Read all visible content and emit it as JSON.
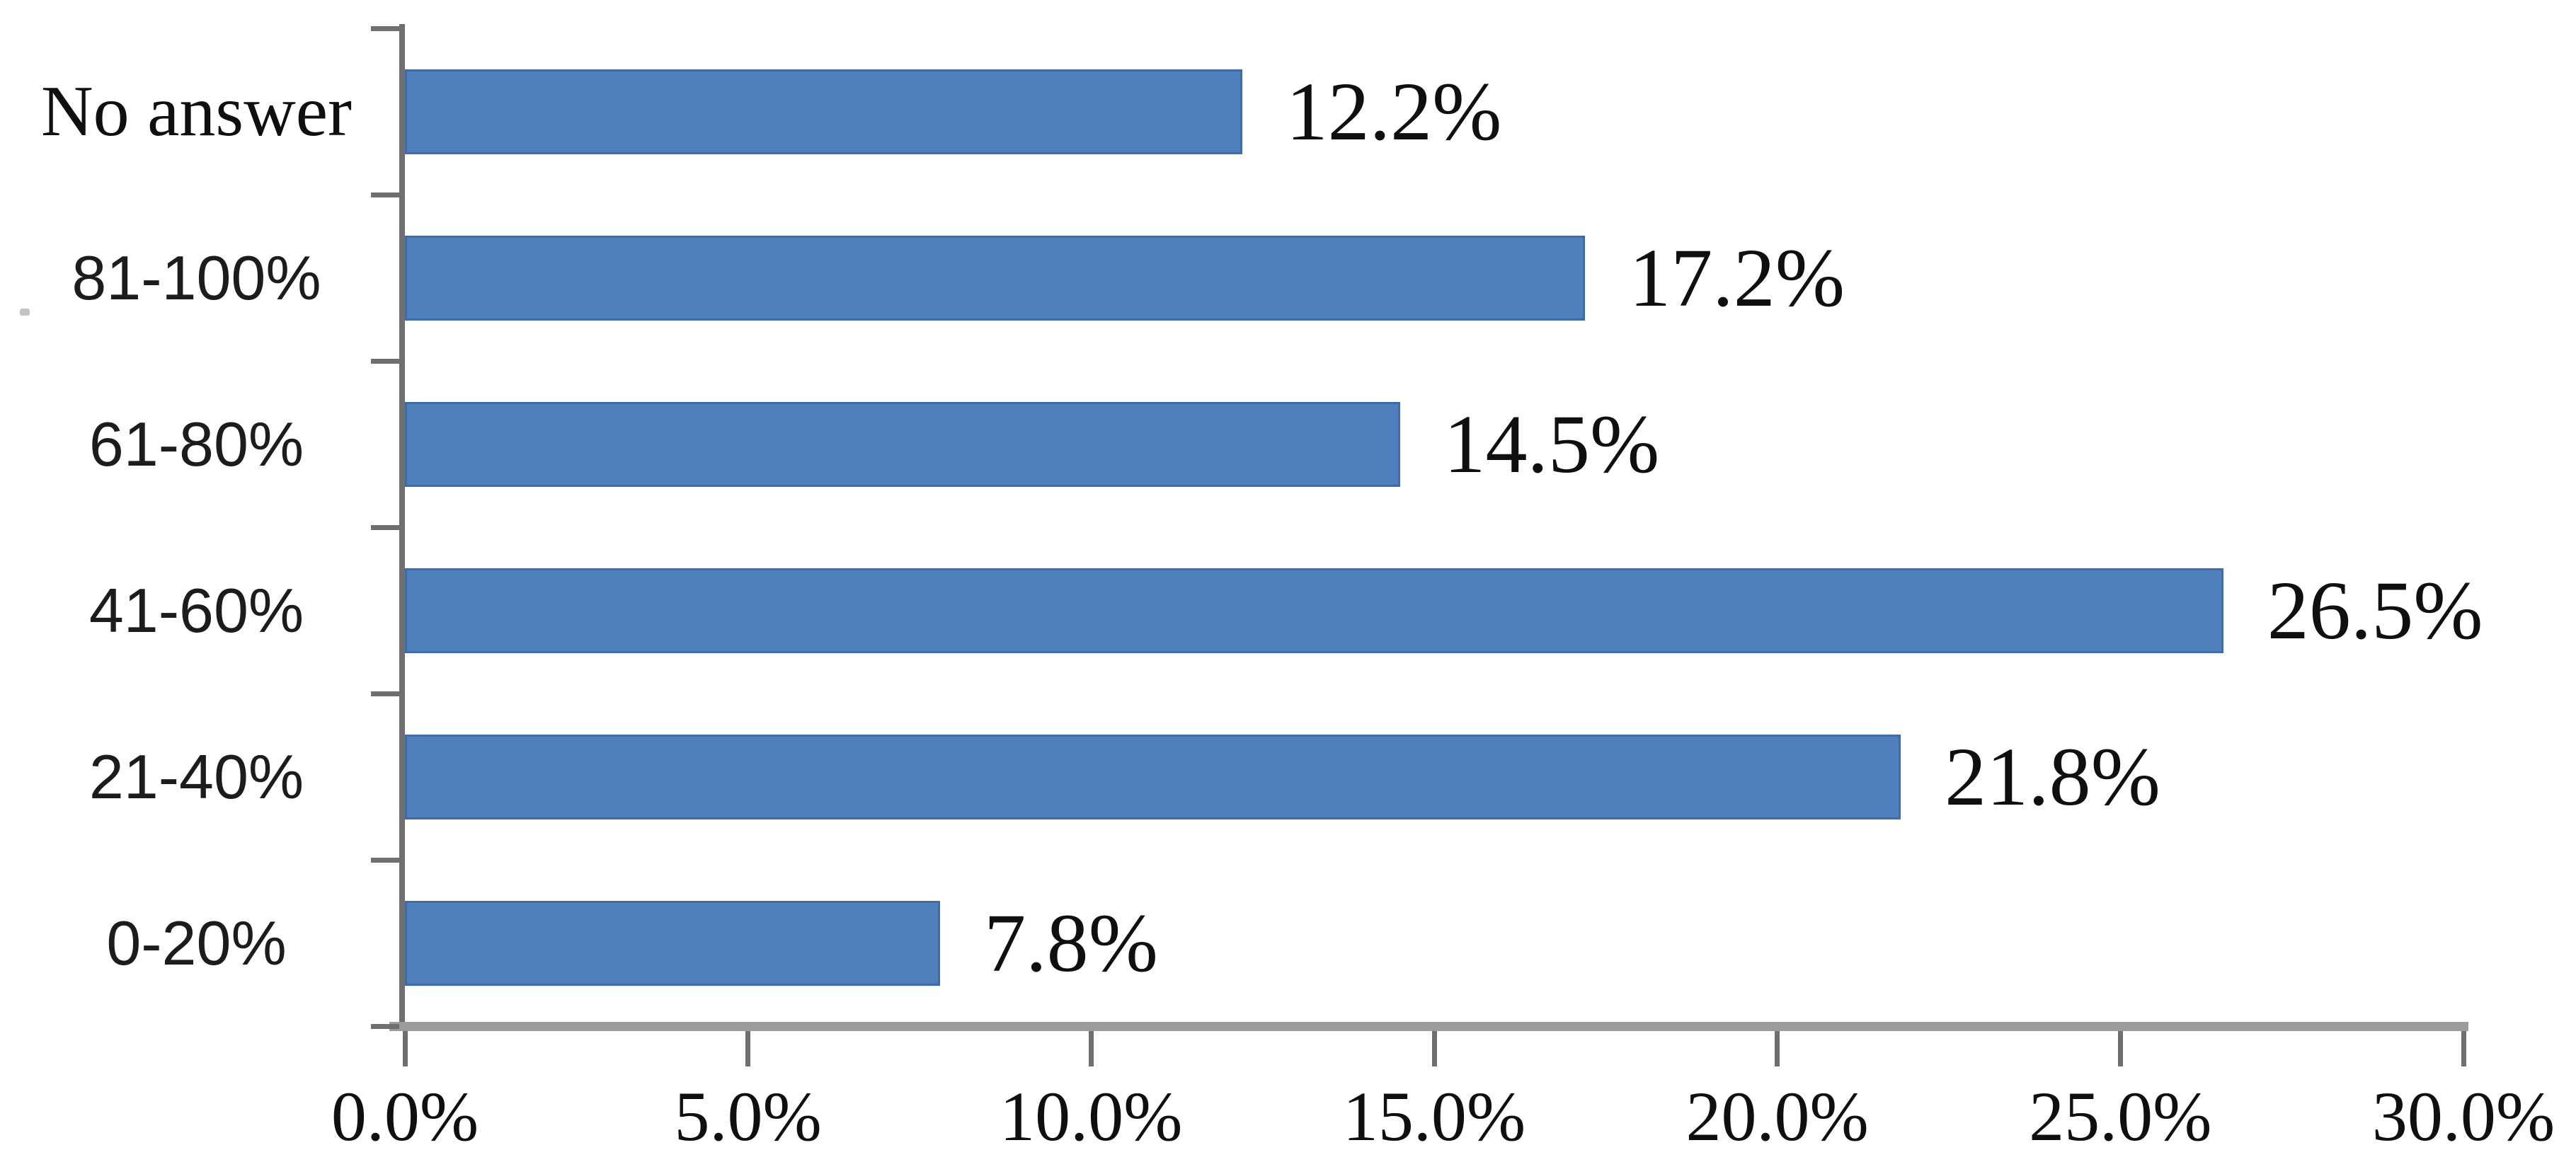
{
  "chart_data": {
    "type": "bar",
    "orientation": "horizontal",
    "title": "",
    "xlabel": "",
    "ylabel": "",
    "categories": [
      "No answer",
      "81-100%",
      "61-80%",
      "41-60%",
      "21-40%",
      "0-20%"
    ],
    "values": [
      12.2,
      17.2,
      14.5,
      26.5,
      21.8,
      7.8
    ],
    "value_labels": [
      "12.2%",
      "17.2%",
      "14.5%",
      "26.5%",
      "21.8%",
      "7.8%"
    ],
    "x_tick_labels": [
      "0.0%",
      "5.0%",
      "10.0%",
      "15.0%",
      "20.0%",
      "25.0%",
      "30.0%"
    ],
    "x_tick_values": [
      0,
      5,
      10,
      15,
      20,
      25,
      30
    ],
    "xlim": [
      0,
      30
    ],
    "grid": "off",
    "legend": "none",
    "data_labels": "outside-end",
    "colors": {
      "bar_fill": "#4E80BE",
      "bar_border": "#3F6CA5",
      "value_text": "#0f0f0f",
      "category_text": "#1c1c1c",
      "y_axis_line": "#6f6f6f",
      "x_axis_line": "#9b9b9b",
      "tick_mark": "#6f6f6f",
      "background": "#ffffff"
    }
  }
}
